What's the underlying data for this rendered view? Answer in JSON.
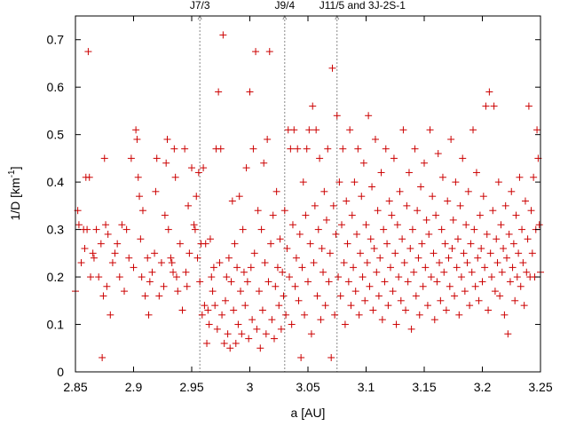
{
  "chart_data": {
    "type": "scatter",
    "title": "",
    "xlabel": "a [AU]",
    "ylabel_main": "1/D [km",
    "ylabel_sup": "-1",
    "ylabel_end": "]",
    "xlim": [
      2.85,
      3.25
    ],
    "ylim": [
      0,
      0.75
    ],
    "xticks": [
      2.85,
      2.9,
      2.95,
      3.0,
      3.05,
      3.1,
      3.15,
      3.2,
      3.25
    ],
    "xtick_labels": [
      "2.85",
      "2.9",
      "2.95",
      "3",
      "3.05",
      "3.1",
      "3.15",
      "3.2",
      "3.25"
    ],
    "yticks": [
      0,
      0.1,
      0.2,
      0.3,
      0.4,
      0.5,
      0.6,
      0.7
    ],
    "ytick_labels": [
      "0",
      "0.1",
      "0.2",
      "0.3",
      "0.4",
      "0.5",
      "0.6",
      "0.7"
    ],
    "grid": false,
    "marker": "+",
    "color": "#cc0000",
    "resonances": [
      {
        "label": "J7/3",
        "x": 2.957
      },
      {
        "label": "J9/4",
        "x": 3.03
      },
      {
        "label": "J11/5 and 3J-2S-1",
        "x": 3.075
      }
    ],
    "points": [
      [
        2.85,
        0.17
      ],
      [
        2.852,
        0.34
      ],
      [
        2.853,
        0.31
      ],
      [
        2.855,
        0.23
      ],
      [
        2.857,
        0.3
      ],
      [
        2.858,
        0.26
      ],
      [
        2.859,
        0.41
      ],
      [
        2.86,
        0.3
      ],
      [
        2.861,
        0.675
      ],
      [
        2.862,
        0.41
      ],
      [
        2.863,
        0.2
      ],
      [
        2.865,
        0.25
      ],
      [
        2.866,
        0.24
      ],
      [
        2.868,
        0.3
      ],
      [
        2.87,
        0.2
      ],
      [
        2.872,
        0.27
      ],
      [
        2.873,
        0.03
      ],
      [
        2.874,
        0.16
      ],
      [
        2.875,
        0.45
      ],
      [
        2.876,
        0.31
      ],
      [
        2.877,
        0.18
      ],
      [
        2.878,
        0.29
      ],
      [
        2.88,
        0.12
      ],
      [
        2.882,
        0.23
      ],
      [
        2.884,
        0.25
      ],
      [
        2.886,
        0.27
      ],
      [
        2.888,
        0.2
      ],
      [
        2.89,
        0.31
      ],
      [
        2.892,
        0.17
      ],
      [
        2.894,
        0.3
      ],
      [
        2.896,
        0.24
      ],
      [
        2.898,
        0.45
      ],
      [
        2.9,
        0.22
      ],
      [
        2.902,
        0.51
      ],
      [
        2.903,
        0.49
      ],
      [
        2.904,
        0.41
      ],
      [
        2.905,
        0.37
      ],
      [
        2.906,
        0.28
      ],
      [
        2.907,
        0.2
      ],
      [
        2.908,
        0.34
      ],
      [
        2.91,
        0.16
      ],
      [
        2.912,
        0.24
      ],
      [
        2.913,
        0.12
      ],
      [
        2.914,
        0.19
      ],
      [
        2.916,
        0.21
      ],
      [
        2.918,
        0.25
      ],
      [
        2.919,
        0.38
      ],
      [
        2.92,
        0.45
      ],
      [
        2.922,
        0.16
      ],
      [
        2.924,
        0.23
      ],
      [
        2.926,
        0.18
      ],
      [
        2.927,
        0.33
      ],
      [
        2.928,
        0.44
      ],
      [
        2.929,
        0.49
      ],
      [
        2.93,
        0.3
      ],
      [
        2.932,
        0.24
      ],
      [
        2.933,
        0.23
      ],
      [
        2.934,
        0.21
      ],
      [
        2.935,
        0.47
      ],
      [
        2.936,
        0.41
      ],
      [
        2.937,
        0.2
      ],
      [
        2.938,
        0.17
      ],
      [
        2.94,
        0.27
      ],
      [
        2.942,
        0.13
      ],
      [
        2.944,
        0.47
      ],
      [
        2.945,
        0.21
      ],
      [
        2.946,
        0.18
      ],
      [
        2.947,
        0.35
      ],
      [
        2.948,
        0.25
      ],
      [
        2.95,
        0.43
      ],
      [
        2.952,
        0.31
      ],
      [
        2.953,
        0.3
      ],
      [
        2.954,
        0.37
      ],
      [
        2.955,
        0.24
      ],
      [
        2.956,
        0.42
      ],
      [
        2.957,
        0.19
      ],
      [
        2.958,
        0.27
      ],
      [
        2.959,
        0.12
      ],
      [
        2.96,
        0.43
      ],
      [
        2.961,
        0.14
      ],
      [
        2.962,
        0.27
      ],
      [
        2.963,
        0.06
      ],
      [
        2.964,
        0.13
      ],
      [
        2.965,
        0.1
      ],
      [
        2.966,
        0.28
      ],
      [
        2.967,
        0.2
      ],
      [
        2.968,
        0.17
      ],
      [
        2.969,
        0.22
      ],
      [
        2.97,
        0.14
      ],
      [
        2.971,
        0.47
      ],
      [
        2.972,
        0.09
      ],
      [
        2.973,
        0.59
      ],
      [
        2.974,
        0.23
      ],
      [
        2.975,
        0.47
      ],
      [
        2.976,
        0.12
      ],
      [
        2.977,
        0.71
      ],
      [
        2.978,
        0.06
      ],
      [
        2.979,
        0.15
      ],
      [
        2.98,
        0.2
      ],
      [
        2.981,
        0.08
      ],
      [
        2.982,
        0.24
      ],
      [
        2.983,
        0.05
      ],
      [
        2.984,
        0.19
      ],
      [
        2.985,
        0.36
      ],
      [
        2.986,
        0.13
      ],
      [
        2.987,
        0.27
      ],
      [
        2.988,
        0.06
      ],
      [
        2.989,
        0.22
      ],
      [
        2.99,
        0.1
      ],
      [
        2.991,
        0.37
      ],
      [
        2.992,
        0.17
      ],
      [
        2.993,
        0.08
      ],
      [
        2.994,
        0.3
      ],
      [
        2.995,
        0.21
      ],
      [
        2.996,
        0.14
      ],
      [
        2.997,
        0.43
      ],
      [
        2.998,
        0.19
      ],
      [
        2.999,
        0.07
      ],
      [
        3.0,
        0.59
      ],
      [
        3.001,
        0.22
      ],
      [
        3.002,
        0.11
      ],
      [
        3.003,
        0.47
      ],
      [
        3.004,
        0.25
      ],
      [
        3.005,
        0.675
      ],
      [
        3.006,
        0.09
      ],
      [
        3.007,
        0.34
      ],
      [
        3.008,
        0.17
      ],
      [
        3.009,
        0.05
      ],
      [
        3.01,
        0.3
      ],
      [
        3.011,
        0.13
      ],
      [
        3.012,
        0.44
      ],
      [
        3.013,
        0.23
      ],
      [
        3.014,
        0.08
      ],
      [
        3.015,
        0.49
      ],
      [
        3.016,
        0.19
      ],
      [
        3.017,
        0.675
      ],
      [
        3.018,
        0.27
      ],
      [
        3.019,
        0.11
      ],
      [
        3.02,
        0.33
      ],
      [
        3.021,
        0.07
      ],
      [
        3.022,
        0.18
      ],
      [
        3.023,
        0.38
      ],
      [
        3.024,
        0.22
      ],
      [
        3.025,
        0.14
      ],
      [
        3.026,
        0.28
      ],
      [
        3.027,
        0.09
      ],
      [
        3.028,
        0.21
      ],
      [
        3.029,
        0.16
      ],
      [
        3.03,
        0.34
      ],
      [
        3.031,
        0.12
      ],
      [
        3.032,
        0.26
      ],
      [
        3.033,
        0.51
      ],
      [
        3.034,
        0.2
      ],
      [
        3.035,
        0.47
      ],
      [
        3.036,
        0.1
      ],
      [
        3.037,
        0.31
      ],
      [
        3.038,
        0.51
      ],
      [
        3.039,
        0.18
      ],
      [
        3.04,
        0.24
      ],
      [
        3.041,
        0.47
      ],
      [
        3.042,
        0.15
      ],
      [
        3.043,
        0.29
      ],
      [
        3.044,
        0.03
      ],
      [
        3.045,
        0.22
      ],
      [
        3.046,
        0.4
      ],
      [
        3.047,
        0.12
      ],
      [
        3.048,
        0.33
      ],
      [
        3.049,
        0.47
      ],
      [
        3.05,
        0.19
      ],
      [
        3.051,
        0.51
      ],
      [
        3.052,
        0.27
      ],
      [
        3.053,
        0.08
      ],
      [
        3.054,
        0.56
      ],
      [
        3.055,
        0.23
      ],
      [
        3.056,
        0.35
      ],
      [
        3.057,
        0.51
      ],
      [
        3.058,
        0.16
      ],
      [
        3.059,
        0.3
      ],
      [
        3.06,
        0.45
      ],
      [
        3.061,
        0.11
      ],
      [
        3.062,
        0.26
      ],
      [
        3.063,
        0.21
      ],
      [
        3.064,
        0.38
      ],
      [
        3.065,
        0.14
      ],
      [
        3.066,
        0.32
      ],
      [
        3.067,
        0.47
      ],
      [
        3.068,
        0.19
      ],
      [
        3.069,
        0.25
      ],
      [
        3.07,
        0.03
      ],
      [
        3.071,
        0.64
      ],
      [
        3.072,
        0.35
      ],
      [
        3.073,
        0.12
      ],
      [
        3.074,
        0.29
      ],
      [
        3.075,
        0.54
      ],
      [
        3.076,
        0.2
      ],
      [
        3.077,
        0.4
      ],
      [
        3.078,
        0.16
      ],
      [
        3.079,
        0.31
      ],
      [
        3.08,
        0.47
      ],
      [
        3.081,
        0.23
      ],
      [
        3.082,
        0.1
      ],
      [
        3.083,
        0.36
      ],
      [
        3.084,
        0.27
      ],
      [
        3.085,
        0.19
      ],
      [
        3.086,
        0.51
      ],
      [
        3.087,
        0.14
      ],
      [
        3.088,
        0.33
      ],
      [
        3.089,
        0.22
      ],
      [
        3.09,
        0.4
      ],
      [
        3.091,
        0.17
      ],
      [
        3.092,
        0.29
      ],
      [
        3.093,
        0.47
      ],
      [
        3.094,
        0.12
      ],
      [
        3.095,
        0.25
      ],
      [
        3.096,
        0.37
      ],
      [
        3.097,
        0.2
      ],
      [
        3.098,
        0.44
      ],
      [
        3.099,
        0.15
      ],
      [
        3.1,
        0.31
      ],
      [
        3.101,
        0.23
      ],
      [
        3.102,
        0.54
      ],
      [
        3.103,
        0.18
      ],
      [
        3.104,
        0.28
      ],
      [
        3.105,
        0.39
      ],
      [
        3.106,
        0.13
      ],
      [
        3.107,
        0.26
      ],
      [
        3.108,
        0.49
      ],
      [
        3.109,
        0.21
      ],
      [
        3.11,
        0.34
      ],
      [
        3.111,
        0.16
      ],
      [
        3.112,
        0.24
      ],
      [
        3.113,
        0.42
      ],
      [
        3.114,
        0.11
      ],
      [
        3.115,
        0.3
      ],
      [
        3.116,
        0.19
      ],
      [
        3.117,
        0.47
      ],
      [
        3.118,
        0.27
      ],
      [
        3.119,
        0.14
      ],
      [
        3.12,
        0.36
      ],
      [
        3.121,
        0.22
      ],
      [
        3.122,
        0.33
      ],
      [
        3.123,
        0.17
      ],
      [
        3.124,
        0.45
      ],
      [
        3.125,
        0.25
      ],
      [
        3.126,
        0.1
      ],
      [
        3.127,
        0.31
      ],
      [
        3.128,
        0.2
      ],
      [
        3.129,
        0.38
      ],
      [
        3.13,
        0.15
      ],
      [
        3.131,
        0.28
      ],
      [
        3.132,
        0.51
      ],
      [
        3.133,
        0.23
      ],
      [
        3.134,
        0.13
      ],
      [
        3.135,
        0.35
      ],
      [
        3.136,
        0.19
      ],
      [
        3.137,
        0.42
      ],
      [
        3.138,
        0.26
      ],
      [
        3.139,
        0.09
      ],
      [
        3.14,
        0.3
      ],
      [
        3.141,
        0.21
      ],
      [
        3.142,
        0.47
      ],
      [
        3.143,
        0.16
      ],
      [
        3.144,
        0.34
      ],
      [
        3.145,
        0.24
      ],
      [
        3.146,
        0.12
      ],
      [
        3.147,
        0.39
      ],
      [
        3.148,
        0.27
      ],
      [
        3.149,
        0.18
      ],
      [
        3.15,
        0.44
      ],
      [
        3.151,
        0.22
      ],
      [
        3.152,
        0.32
      ],
      [
        3.153,
        0.14
      ],
      [
        3.154,
        0.29
      ],
      [
        3.155,
        0.51
      ],
      [
        3.156,
        0.2
      ],
      [
        3.157,
        0.37
      ],
      [
        3.158,
        0.25
      ],
      [
        3.159,
        0.11
      ],
      [
        3.16,
        0.33
      ],
      [
        3.161,
        0.19
      ],
      [
        3.162,
        0.46
      ],
      [
        3.163,
        0.23
      ],
      [
        3.164,
        0.15
      ],
      [
        3.165,
        0.3
      ],
      [
        3.166,
        0.41
      ],
      [
        3.167,
        0.21
      ],
      [
        3.168,
        0.27
      ],
      [
        3.169,
        0.13
      ],
      [
        3.17,
        0.36
      ],
      [
        3.171,
        0.24
      ],
      [
        3.172,
        0.18
      ],
      [
        3.173,
        0.49
      ],
      [
        3.174,
        0.26
      ],
      [
        3.175,
        0.32
      ],
      [
        3.176,
        0.16
      ],
      [
        3.177,
        0.4
      ],
      [
        3.178,
        0.22
      ],
      [
        3.179,
        0.28
      ],
      [
        3.18,
        0.12
      ],
      [
        3.181,
        0.35
      ],
      [
        3.182,
        0.2
      ],
      [
        3.183,
        0.45
      ],
      [
        3.184,
        0.25
      ],
      [
        3.185,
        0.17
      ],
      [
        3.186,
        0.31
      ],
      [
        3.187,
        0.23
      ],
      [
        3.188,
        0.38
      ],
      [
        3.189,
        0.14
      ],
      [
        3.19,
        0.27
      ],
      [
        3.191,
        0.21
      ],
      [
        3.192,
        0.51
      ],
      [
        3.193,
        0.3
      ],
      [
        3.194,
        0.18
      ],
      [
        3.195,
        0.42
      ],
      [
        3.196,
        0.24
      ],
      [
        3.197,
        0.15
      ],
      [
        3.198,
        0.33
      ],
      [
        3.199,
        0.26
      ],
      [
        3.2,
        0.19
      ],
      [
        3.201,
        0.37
      ],
      [
        3.202,
        0.22
      ],
      [
        3.203,
        0.56
      ],
      [
        3.204,
        0.29
      ],
      [
        3.205,
        0.13
      ],
      [
        3.206,
        0.59
      ],
      [
        3.207,
        0.25
      ],
      [
        3.208,
        0.2
      ],
      [
        3.209,
        0.34
      ],
      [
        3.21,
        0.56
      ],
      [
        3.211,
        0.17
      ],
      [
        3.212,
        0.28
      ],
      [
        3.213,
        0.23
      ],
      [
        3.214,
        0.4
      ],
      [
        3.215,
        0.16
      ],
      [
        3.216,
        0.31
      ],
      [
        3.217,
        0.21
      ],
      [
        3.218,
        0.26
      ],
      [
        3.219,
        0.12
      ],
      [
        3.22,
        0.35
      ],
      [
        3.221,
        0.24
      ],
      [
        3.222,
        0.08
      ],
      [
        3.223,
        0.29
      ],
      [
        3.224,
        0.19
      ],
      [
        3.225,
        0.38
      ],
      [
        3.226,
        0.22
      ],
      [
        3.227,
        0.27
      ],
      [
        3.228,
        0.15
      ],
      [
        3.229,
        0.33
      ],
      [
        3.23,
        0.2
      ],
      [
        3.231,
        0.25
      ],
      [
        3.232,
        0.41
      ],
      [
        3.233,
        0.18
      ],
      [
        3.234,
        0.3
      ],
      [
        3.235,
        0.23
      ],
      [
        3.236,
        0.14
      ],
      [
        3.237,
        0.36
      ],
      [
        3.238,
        0.21
      ],
      [
        3.239,
        0.28
      ],
      [
        3.24,
        0.56
      ],
      [
        3.241,
        0.2
      ],
      [
        3.242,
        0.34
      ],
      [
        3.243,
        0.25
      ],
      [
        3.244,
        0.41
      ],
      [
        3.245,
        0.2
      ],
      [
        3.246,
        0.3
      ],
      [
        3.247,
        0.51
      ],
      [
        3.248,
        0.45
      ],
      [
        3.249,
        0.31
      ],
      [
        3.25,
        0.21
      ]
    ]
  }
}
